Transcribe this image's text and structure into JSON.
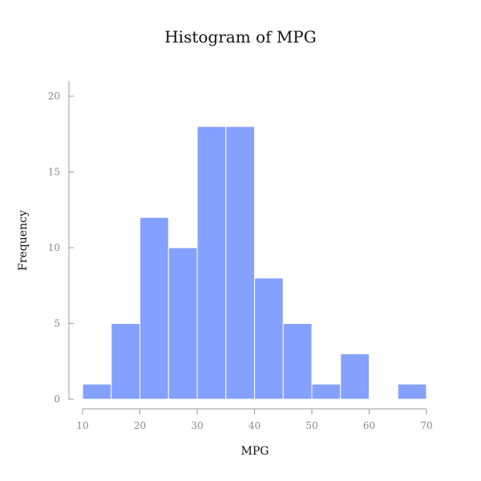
{
  "chart_data": {
    "type": "bar",
    "title": "Histogram of MPG",
    "xlabel": "MPG",
    "ylabel": "Frequency",
    "bin_edges": [
      10,
      15,
      20,
      25,
      30,
      35,
      40,
      45,
      50,
      55,
      60,
      65,
      70
    ],
    "values": [
      1,
      5,
      12,
      10,
      18,
      18,
      8,
      5,
      1,
      3,
      0,
      1
    ],
    "xlim": [
      10,
      70
    ],
    "ylim": [
      0,
      21
    ],
    "xticks": [
      10,
      20,
      30,
      40,
      50,
      60,
      70
    ],
    "yticks": [
      0,
      5,
      10,
      15,
      20
    ],
    "grid": false,
    "colors": {
      "bar": "#85a1ff",
      "bar_edge": "#ffffff",
      "axis": "#999999",
      "tick_text": "#888888"
    }
  }
}
